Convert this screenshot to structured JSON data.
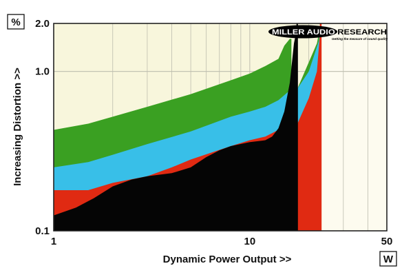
{
  "chart_data": {
    "type": "area",
    "y_unit": "%",
    "x_unit": "W",
    "xlabel": "Dynamic Power Output >>",
    "ylabel": "Increasing Distortion >>",
    "x_scale": "log",
    "y_scale": "log",
    "xlim": [
      1,
      50
    ],
    "ylim": [
      0.1,
      2.0
    ],
    "x_ticks": [
      {
        "value": 1,
        "label": "1"
      },
      {
        "value": 10,
        "label": "10"
      },
      {
        "value": 50,
        "label": "50"
      }
    ],
    "y_ticks": [
      {
        "value": 0.1,
        "label": "0.1"
      },
      {
        "value": 1.0,
        "label": "1.0"
      },
      {
        "value": 2.0,
        "label": "2.0"
      }
    ],
    "grid": true,
    "background_colors": {
      "plot": "#f8f6dc",
      "beyond_limit": "#fdfbef"
    },
    "series": [
      {
        "color": "#3aa022",
        "points": [
          [
            1,
            0.43
          ],
          [
            1.5,
            0.47
          ],
          [
            2,
            0.52
          ],
          [
            3,
            0.6
          ],
          [
            5,
            0.72
          ],
          [
            8,
            0.88
          ],
          [
            10,
            0.97
          ],
          [
            12,
            1.08
          ],
          [
            14,
            1.2
          ],
          [
            15,
            1.45
          ],
          [
            16,
            1.6
          ],
          [
            16.3,
            1.6
          ],
          [
            16.3,
            0.78
          ],
          [
            17.5,
            0.78
          ],
          [
            22,
            1.5
          ],
          [
            23,
            2.0
          ],
          [
            23,
            0.1
          ],
          [
            1,
            0.1
          ]
        ]
      },
      {
        "color": "#38bfe8",
        "points": [
          [
            1,
            0.25
          ],
          [
            1.5,
            0.27
          ],
          [
            2,
            0.3
          ],
          [
            3,
            0.35
          ],
          [
            5,
            0.42
          ],
          [
            8,
            0.52
          ],
          [
            10,
            0.56
          ],
          [
            12,
            0.6
          ],
          [
            14,
            0.66
          ],
          [
            16,
            0.76
          ],
          [
            17.5,
            0.78
          ],
          [
            20,
            1.0
          ],
          [
            22.5,
            1.55
          ],
          [
            23,
            2.0
          ],
          [
            23,
            0.1
          ],
          [
            1,
            0.1
          ]
        ]
      },
      {
        "color": "#e02a12",
        "points": [
          [
            1,
            0.18
          ],
          [
            1.5,
            0.18
          ],
          [
            2,
            0.2
          ],
          [
            3,
            0.22
          ],
          [
            4,
            0.25
          ],
          [
            5,
            0.28
          ],
          [
            8,
            0.34
          ],
          [
            10,
            0.37
          ],
          [
            12,
            0.39
          ],
          [
            14,
            0.43
          ],
          [
            15,
            0.47
          ],
          [
            17.5,
            0.47
          ],
          [
            20,
            0.68
          ],
          [
            22,
            1.0
          ],
          [
            23,
            2.0
          ],
          [
            23,
            0.1
          ],
          [
            1,
            0.1
          ]
        ]
      },
      {
        "color": "#050505",
        "points": [
          [
            1,
            0.125
          ],
          [
            1.3,
            0.14
          ],
          [
            1.6,
            0.16
          ],
          [
            2,
            0.19
          ],
          [
            2.5,
            0.21
          ],
          [
            3,
            0.22
          ],
          [
            4,
            0.23
          ],
          [
            5,
            0.25
          ],
          [
            6,
            0.29
          ],
          [
            7,
            0.32
          ],
          [
            8,
            0.34
          ],
          [
            10,
            0.36
          ],
          [
            12,
            0.37
          ],
          [
            13,
            0.39
          ],
          [
            14,
            0.44
          ],
          [
            15,
            0.56
          ],
          [
            16,
            0.85
          ],
          [
            16.8,
            1.5
          ],
          [
            17.3,
            1.8
          ],
          [
            17.3,
            2.0
          ],
          [
            17.6,
            2.0
          ],
          [
            17.6,
            0.1
          ],
          [
            1,
            0.1
          ]
        ]
      }
    ],
    "annotations": [
      {
        "x": 23,
        "color": "#e02a12",
        "kind": "vertical-line"
      }
    ]
  },
  "logo": {
    "brand": "MILLER AUDIO RESEARCH",
    "tagline": "Getting the measure of sound quality"
  }
}
